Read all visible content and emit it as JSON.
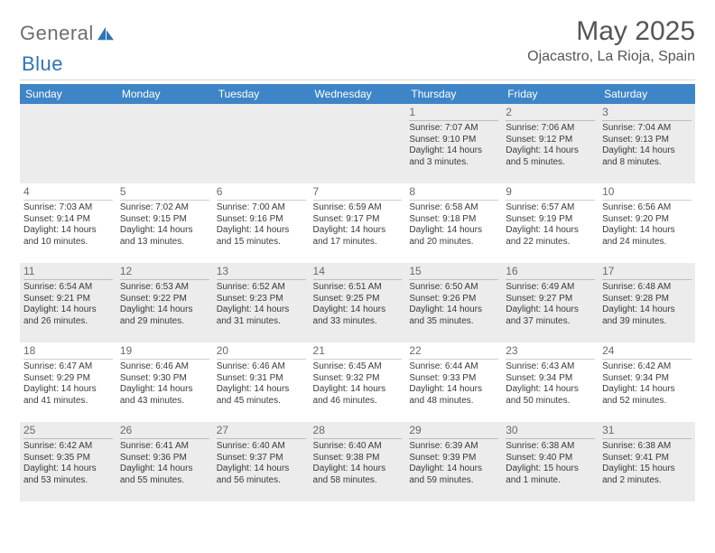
{
  "brand": {
    "name_left": "General",
    "name_right": "Blue"
  },
  "title": {
    "month": "May 2025",
    "location": "Ojacastro, La Rioja, Spain"
  },
  "colors": {
    "header_bg": "#3d85c6",
    "header_text": "#ffffff",
    "shaded_bg": "#ececec",
    "divider": "#d9d9d9",
    "text": "#3a3a3a",
    "daynum": "#6a6a6a",
    "logo_grey": "#6e6e6e",
    "logo_blue": "#2f74b5"
  },
  "weekdays": [
    "Sunday",
    "Monday",
    "Tuesday",
    "Wednesday",
    "Thursday",
    "Friday",
    "Saturday"
  ],
  "weeks": [
    [
      null,
      null,
      null,
      null,
      {
        "n": 1,
        "sr": "7:07 AM",
        "ss": "9:10 PM",
        "dl": "14 hours and 3 minutes."
      },
      {
        "n": 2,
        "sr": "7:06 AM",
        "ss": "9:12 PM",
        "dl": "14 hours and 5 minutes."
      },
      {
        "n": 3,
        "sr": "7:04 AM",
        "ss": "9:13 PM",
        "dl": "14 hours and 8 minutes."
      }
    ],
    [
      {
        "n": 4,
        "sr": "7:03 AM",
        "ss": "9:14 PM",
        "dl": "14 hours and 10 minutes."
      },
      {
        "n": 5,
        "sr": "7:02 AM",
        "ss": "9:15 PM",
        "dl": "14 hours and 13 minutes."
      },
      {
        "n": 6,
        "sr": "7:00 AM",
        "ss": "9:16 PM",
        "dl": "14 hours and 15 minutes."
      },
      {
        "n": 7,
        "sr": "6:59 AM",
        "ss": "9:17 PM",
        "dl": "14 hours and 17 minutes."
      },
      {
        "n": 8,
        "sr": "6:58 AM",
        "ss": "9:18 PM",
        "dl": "14 hours and 20 minutes."
      },
      {
        "n": 9,
        "sr": "6:57 AM",
        "ss": "9:19 PM",
        "dl": "14 hours and 22 minutes."
      },
      {
        "n": 10,
        "sr": "6:56 AM",
        "ss": "9:20 PM",
        "dl": "14 hours and 24 minutes."
      }
    ],
    [
      {
        "n": 11,
        "sr": "6:54 AM",
        "ss": "9:21 PM",
        "dl": "14 hours and 26 minutes."
      },
      {
        "n": 12,
        "sr": "6:53 AM",
        "ss": "9:22 PM",
        "dl": "14 hours and 29 minutes."
      },
      {
        "n": 13,
        "sr": "6:52 AM",
        "ss": "9:23 PM",
        "dl": "14 hours and 31 minutes."
      },
      {
        "n": 14,
        "sr": "6:51 AM",
        "ss": "9:25 PM",
        "dl": "14 hours and 33 minutes."
      },
      {
        "n": 15,
        "sr": "6:50 AM",
        "ss": "9:26 PM",
        "dl": "14 hours and 35 minutes."
      },
      {
        "n": 16,
        "sr": "6:49 AM",
        "ss": "9:27 PM",
        "dl": "14 hours and 37 minutes."
      },
      {
        "n": 17,
        "sr": "6:48 AM",
        "ss": "9:28 PM",
        "dl": "14 hours and 39 minutes."
      }
    ],
    [
      {
        "n": 18,
        "sr": "6:47 AM",
        "ss": "9:29 PM",
        "dl": "14 hours and 41 minutes."
      },
      {
        "n": 19,
        "sr": "6:46 AM",
        "ss": "9:30 PM",
        "dl": "14 hours and 43 minutes."
      },
      {
        "n": 20,
        "sr": "6:46 AM",
        "ss": "9:31 PM",
        "dl": "14 hours and 45 minutes."
      },
      {
        "n": 21,
        "sr": "6:45 AM",
        "ss": "9:32 PM",
        "dl": "14 hours and 46 minutes."
      },
      {
        "n": 22,
        "sr": "6:44 AM",
        "ss": "9:33 PM",
        "dl": "14 hours and 48 minutes."
      },
      {
        "n": 23,
        "sr": "6:43 AM",
        "ss": "9:34 PM",
        "dl": "14 hours and 50 minutes."
      },
      {
        "n": 24,
        "sr": "6:42 AM",
        "ss": "9:34 PM",
        "dl": "14 hours and 52 minutes."
      }
    ],
    [
      {
        "n": 25,
        "sr": "6:42 AM",
        "ss": "9:35 PM",
        "dl": "14 hours and 53 minutes."
      },
      {
        "n": 26,
        "sr": "6:41 AM",
        "ss": "9:36 PM",
        "dl": "14 hours and 55 minutes."
      },
      {
        "n": 27,
        "sr": "6:40 AM",
        "ss": "9:37 PM",
        "dl": "14 hours and 56 minutes."
      },
      {
        "n": 28,
        "sr": "6:40 AM",
        "ss": "9:38 PM",
        "dl": "14 hours and 58 minutes."
      },
      {
        "n": 29,
        "sr": "6:39 AM",
        "ss": "9:39 PM",
        "dl": "14 hours and 59 minutes."
      },
      {
        "n": 30,
        "sr": "6:38 AM",
        "ss": "9:40 PM",
        "dl": "15 hours and 1 minute."
      },
      {
        "n": 31,
        "sr": "6:38 AM",
        "ss": "9:41 PM",
        "dl": "15 hours and 2 minutes."
      }
    ]
  ],
  "labels": {
    "sunrise": "Sunrise:",
    "sunset": "Sunset:",
    "daylight": "Daylight:"
  }
}
